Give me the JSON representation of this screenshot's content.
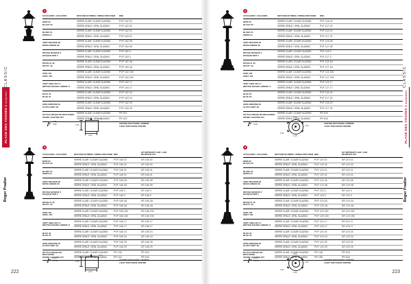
{
  "accent": "#c41230",
  "diffusers": [
    "VERRE CLAIR / CLEAR GLAZING",
    "VERRE OPALE / OPAL GLAZING"
  ],
  "pages": {
    "left": {
      "page_number": "222",
      "sidebar": {
        "brand": "Roger Pradier",
        "series": "PLACE DES VOSGES 1",
        "series_sub": "évolution",
        "category": "CLASSIC"
      }
    },
    "right": {
      "page_number": "223",
      "sidebar": {
        "brand": "Roger Pradier",
        "series": "PLACE DES VOSGES 1",
        "series_sub": "évolution",
        "category": "CLASSIC"
      }
    }
  },
  "tables": [
    {
      "marker": "1",
      "headers": [
        "COULEURS / COLOURS",
        "DIFFUSEUR PMMA / PMMA DIFFUSER",
        "RÉF."
      ],
      "cols": [
        50,
        62,
        54
      ],
      "groups": [
        [
          "NOIR 02",
          "BLACK 02",
          "PVP 162 02",
          "PVP 163 02"
        ],
        [
          "BLANC 01",
          "WHITE 01",
          "PVP 162 01",
          "PVP 163 01"
        ],
        [
          "VERT MOUSSE 08",
          "MOSS GREEN 08",
          "PVP 162 08",
          "PVP 163 08"
        ],
        [
          "ROUGE BASQUE 3",
          "BASQUE RED 3",
          "PVP 162 3",
          "PVP 163 3"
        ],
        [
          "ROUILLE 4A",
          "RUSTY 4A",
          "PVP 162 4A",
          "PVP 163 4A"
        ],
        [
          "GRIS 150",
          "GREY 150",
          "PVP 162 150",
          "PVP 163 150"
        ],
        [
          "VERT ANGLAIS 17",
          "BRITISH RACING GREEN 17",
          "PVP 162 17",
          "PVP 163 17"
        ],
        [
          "BLEU 24",
          "BLUE 24",
          "PVP 162 24",
          "PVP 163 24"
        ],
        [
          "GRIS ARDOISE 29",
          "SLATE GREY 29",
          "PVP 162 29",
          "PVP 163 29"
        ],
        [
          "KIT ÉCLAIRAGE DE RECHANGE",
          "SPARE LIGHTING KIT",
          "PR 521",
          "PR 522"
        ]
      ],
      "footer": {
        "spec": [
          "0,86",
          "4,50"
        ],
        "dims": {
          "top": "0,21",
          "left": "0,40",
          "bottom": "0,25"
        },
        "caption_fr": "CENTRE DIFFUSION LUMIÈRE",
        "caption_en": "LIGHT DIFFUSION CENTRE"
      }
    },
    {
      "marker": "2",
      "headers": [
        "COULEURS / COLOURS",
        "DIFFUSEUR PMMA / PMMA DIFFUSER",
        "RÉF."
      ],
      "cols": [
        50,
        62,
        54
      ],
      "groups": [
        [
          "NOIR 02",
          "BLACK 02",
          "PVF 116 02",
          "PVF 117 02"
        ],
        [
          "BLANC 01",
          "WHITE 01",
          "PVF 116 01",
          "PVF 117 01"
        ],
        [
          "VERT MOUSSE 08",
          "MOSS GREEN 08",
          "PVF 116 08",
          "PVF 117 08"
        ],
        [
          "ROUGE BASQUE 3",
          "BASQUE RED 3",
          "PVF 116 3",
          "PVF 117 3"
        ],
        [
          "ROUILLE 4A",
          "RUSTY 4A",
          "PVF 116 4A",
          "PVF 117 4A"
        ],
        [
          "GRIS 150",
          "GREY 150",
          "PVF 116 150",
          "PVF 117 150"
        ],
        [
          "VERT ANGLAIS 17",
          "BRITISH RACING GREEN 17",
          "PVF 116 17",
          "PVF 117 17"
        ],
        [
          "BLEU 24",
          "BLUE 24",
          "PVF 116 24",
          "PVF 117 24"
        ],
        [
          "GRIS ARDOISE 29",
          "SLATE GREY 29",
          "PVF 116 29",
          "PVF 117 29"
        ],
        [
          "KIT ÉCLAIRAGE DE RECHANGE",
          "SPARE LIGHTING KIT",
          "PR 520",
          "PR 540"
        ]
      ],
      "footer": {
        "spec": [
          "1,73",
          "9,20"
        ],
        "dims": {
          "top": "0,21",
          "right": "0,24",
          "left": "0,52",
          "bottom": "0,45"
        },
        "caption_fr": "CENTRE DIFFUSION LUMIÈRE",
        "caption_en": "LIGHT DIFFUSION CENTRE"
      }
    },
    {
      "marker": "3",
      "headers": [
        "COULEURS / COLOURS",
        "DIFFUSEUR PMMA / PMMA DIFFUSER",
        "RÉF.",
        "KIT RÉTROFIT LED / LED RETROFIT KIT"
      ],
      "cols": [
        46,
        58,
        40,
        46
      ],
      "groups": [
        [
          "NOIR 02",
          "BLACK 02",
          "PVP 165 02",
          "PVP 166 02",
          "KR 165 02",
          "KR 166 02"
        ],
        [
          "BLANC 01",
          "WHITE 01",
          "PVP 165 01",
          "PVP 166 01",
          "KR 165 01",
          "KR 166 01"
        ],
        [
          "VERT MOUSSE 08",
          "MOSS GREEN 08",
          "PVP 165 08",
          "PVP 166 08",
          "KR 165 08",
          "KR 166 08"
        ],
        [
          "ROUGE BASQUE 3",
          "BASQUE RED 3",
          "PVP 165 3",
          "PVP 166 3",
          "KR 165 3",
          "KR 166 3"
        ],
        [
          "ROUILLE 4A",
          "RUSTY 4A",
          "PVP 165 4A",
          "PVP 166 4A",
          "KR 165 4A",
          "KR 166 4A"
        ],
        [
          "GRIS 150",
          "GREY 150",
          "PVP 165 150",
          "PVP 166 150",
          "KR 165 150",
          "KR 166 150"
        ],
        [
          "VERT ANGLAIS 17",
          "BRITISH RACING GREEN 17",
          "PVP 165 17",
          "PVP 166 17",
          "KR 165 17",
          "KR 166 17"
        ],
        [
          "BLEU 24",
          "BLUE 24",
          "PVP 165 24",
          "PVP 166 24",
          "KR 165 24",
          "KR 166 24"
        ],
        [
          "GRIS ARDOISE 29",
          "SLATE GREY 29",
          "PVP 165 29",
          "PVP 166 29",
          "KR 165 29",
          "KR 166 29"
        ],
        [
          "KIT ÉCLAIRAGE DE RECHANGE",
          "SPARE LIGHTING KIT",
          "PR 139",
          "PR 162",
          "PR 524",
          "PR 544"
        ]
      ],
      "footer": {
        "spec": [
          "2,32",
          "12,40"
        ],
        "dims": {
          "top": "0,21",
          "left": "0,40",
          "bottom": "0,25"
        },
        "caption_fr": "CENTRE DIFFUSION LUMIÈRE",
        "caption_en": "LIGHT DIFFUSION CENTRE"
      }
    },
    {
      "marker": "4",
      "headers": [
        "COULEURS / COLOURS",
        "DIFFUSEUR PMMA / PMMA DIFFUSER",
        "RÉF.",
        "KIT RÉTROFIT LED / LED RETROFIT KIT"
      ],
      "cols": [
        46,
        58,
        40,
        46
      ],
      "groups": [
        [
          "NOIR 02",
          "BLACK 02",
          "PVF 119 02",
          "PVF 120 02",
          "KR 119 02",
          "KR 120 02"
        ],
        [
          "BLANC 01",
          "WHITE 01",
          "PVF 119 01",
          "PVF 120 01",
          "KR 119 01",
          "KR 120 01"
        ],
        [
          "VERT MOUSSE 08",
          "MOSS GREEN 08",
          "PVF 119 08",
          "PVF 120 08",
          "KR 119 08",
          "KR 120 08"
        ],
        [
          "ROUGE BASQUE 3",
          "BASQUE RED 3",
          "PVF 119 3",
          "PVF 120 3",
          "KR 119 3",
          "KR 120 3"
        ],
        [
          "ROUILLE 4A",
          "RUSTY 4A",
          "PVF 119 4A",
          "PVF 120 4A",
          "KR 119 4A",
          "KR 120 4A"
        ],
        [
          "GRIS 150",
          "GREY 150",
          "PVF 119 150",
          "PVF 120 150",
          "KR 119 150",
          "KR 120 150"
        ],
        [
          "VERT ANGLAIS 17",
          "BRITISH RACING GREEN 17",
          "PVF 119 17",
          "PVF 120 17",
          "KR 119 17",
          "KR 120 17"
        ],
        [
          "BLEU 24",
          "BLUE 24",
          "PVF 119 24",
          "PVF 120 24",
          "KR 119 24",
          "KR 120 24"
        ],
        [
          "GRIS ARDOISE 29",
          "SLATE GREY 29",
          "PVF 119 29",
          "PVF 120 29",
          "KR 119 29",
          "KR 120 29"
        ],
        [
          "KIT ÉCLAIRAGE DE RECHANGE",
          "SPARE LIGHTING KIT",
          "PR 138",
          "PR 158",
          "PR 523",
          "PR 543"
        ]
      ],
      "footer": {
        "spec": [
          "2,55",
          "13,10"
        ],
        "dims": {
          "top": "0,21",
          "right": "0,24",
          "left": "0,52",
          "bottom": "0,45"
        },
        "caption_fr": "CENTRE DIFFUSION LUMIÈRE",
        "caption_en": "LIGHT DIFFUSION CENTRE"
      }
    }
  ]
}
